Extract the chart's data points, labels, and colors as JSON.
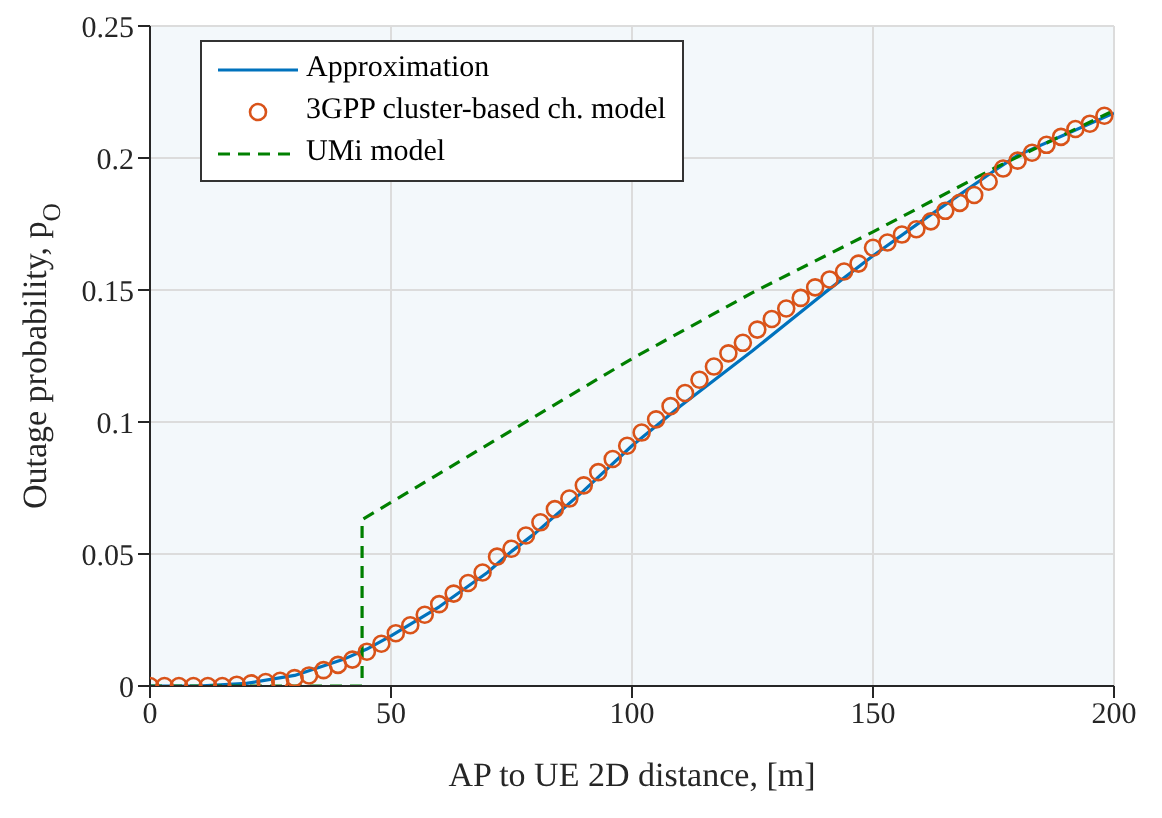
{
  "chart_data": {
    "type": "line",
    "xlabel": "AP to UE 2D distance, [m]",
    "ylabel": "Outage probability, p$_{O}$",
    "xlim": [
      0,
      200
    ],
    "ylim": [
      0,
      0.25
    ],
    "xticks": [
      0,
      50,
      100,
      150,
      200
    ],
    "yticks": [
      0,
      0.05,
      0.1,
      0.15,
      0.2,
      0.25
    ],
    "grid": true,
    "legend": "top left",
    "series": [
      {
        "name": "Approximation",
        "color": "#0072bd",
        "line_style": "solid",
        "marker": "none",
        "x": [
          0,
          10,
          20,
          30,
          40,
          45,
          50,
          60,
          70,
          75,
          80,
          90,
          100,
          110,
          125,
          140,
          150,
          160,
          175,
          180,
          190,
          200
        ],
        "values": [
          0,
          0,
          0.001,
          0.004,
          0.01,
          0.014,
          0.019,
          0.03,
          0.043,
          0.051,
          0.058,
          0.074,
          0.091,
          0.106,
          0.127,
          0.149,
          0.163,
          0.176,
          0.195,
          0.201,
          0.209,
          0.217
        ]
      },
      {
        "name": "3GPP cluster-based ch. model",
        "type": "scatter",
        "color": "#d95319",
        "marker": "circle",
        "x": [
          0,
          3,
          6,
          9,
          12,
          15,
          18,
          21,
          24,
          27,
          30,
          33,
          36,
          39,
          42,
          45,
          48,
          51,
          54,
          57,
          60,
          63,
          66,
          69,
          72,
          75,
          78,
          81,
          84,
          87,
          90,
          93,
          96,
          99,
          102,
          105,
          108,
          111,
          114,
          117,
          120,
          123,
          126,
          129,
          132,
          135,
          138,
          141,
          144,
          147,
          150,
          153,
          156,
          159,
          162,
          165,
          168,
          171,
          174,
          177,
          180,
          183,
          186,
          189,
          192,
          195,
          198
        ],
        "values": [
          0,
          0,
          0,
          0,
          0,
          0,
          0.0005,
          0.001,
          0.0015,
          0.002,
          0.003,
          0.004,
          0.006,
          0.008,
          0.01,
          0.013,
          0.016,
          0.02,
          0.023,
          0.027,
          0.031,
          0.035,
          0.039,
          0.043,
          0.049,
          0.052,
          0.057,
          0.062,
          0.067,
          0.071,
          0.076,
          0.081,
          0.086,
          0.091,
          0.096,
          0.101,
          0.106,
          0.111,
          0.116,
          0.121,
          0.126,
          0.13,
          0.135,
          0.139,
          0.143,
          0.147,
          0.151,
          0.154,
          0.157,
          0.16,
          0.166,
          0.168,
          0.171,
          0.173,
          0.176,
          0.18,
          0.183,
          0.186,
          0.191,
          0.196,
          0.199,
          0.202,
          0.205,
          0.208,
          0.211,
          0.213,
          0.216
        ]
      },
      {
        "name": "UMi model",
        "color": "#008000",
        "line_style": "dashed",
        "marker": "none",
        "x": [
          0,
          44,
          44,
          100,
          125,
          150,
          175,
          200
        ],
        "values": [
          0,
          0,
          0.063,
          0.124,
          0.149,
          0.172,
          0.196,
          0.218
        ]
      }
    ]
  }
}
